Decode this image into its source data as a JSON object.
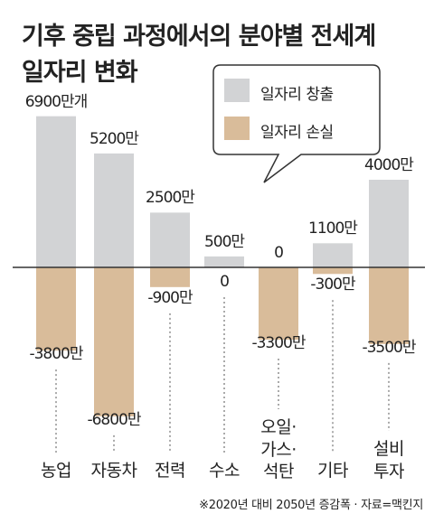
{
  "title_lines": [
    "기후 중립 과정에서의 분야별 전세계",
    "일자리 변화"
  ],
  "footnote": "※2020년 대비 2050년 증감폭 · 자료=맥킨지",
  "chart_data": {
    "type": "bar",
    "title": "기후 중립 과정에서의 분야별 전세계 일자리 변화",
    "unit": "만",
    "categories": [
      "농업",
      "자동차",
      "전력",
      "수소",
      "오일·가스·석탄",
      "기타",
      "설비투자"
    ],
    "category_display": [
      [
        "농업"
      ],
      [
        "자동차"
      ],
      [
        "전력"
      ],
      [
        "수소"
      ],
      [
        "오일·",
        "가스·",
        "석탄"
      ],
      [
        "기타"
      ],
      [
        "설비",
        "투자"
      ]
    ],
    "series": [
      {
        "name": "일자리 창출",
        "color": "#d2d3d5",
        "values": [
          6900,
          5200,
          2500,
          500,
          0,
          1100,
          4000
        ]
      },
      {
        "name": "일자리 손실",
        "color": "#d9bc9a",
        "values": [
          -3800,
          -6800,
          -900,
          0,
          -3300,
          -300,
          -3500
        ]
      }
    ],
    "gain_labels": [
      "6900만개",
      "5200만",
      "2500만",
      "500만",
      "0",
      "1100만",
      "4000만"
    ],
    "loss_labels": [
      "-3800만",
      "-6800만",
      "-900만",
      "0",
      "-3300만",
      "-300만",
      "-3500만"
    ],
    "legend_position": "top-right",
    "grid": false
  }
}
